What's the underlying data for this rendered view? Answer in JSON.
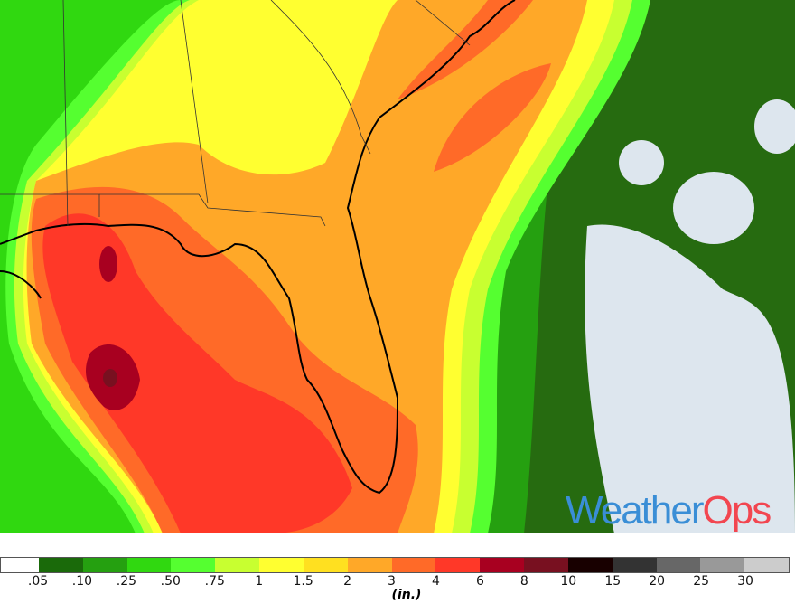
{
  "legend": {
    "unit": "(in.)",
    "labels": [
      ".05",
      ".10",
      ".25",
      ".50",
      ".75",
      "1",
      "1.5",
      "2",
      "3",
      "4",
      "6",
      "8",
      "10",
      "15",
      "20",
      "25",
      "30"
    ],
    "colors": [
      "#ffffff",
      "#1a6a0a",
      "#25a010",
      "#30d810",
      "#55ff30",
      "#c8ff30",
      "#ffff30",
      "#ffe020",
      "#ffa828",
      "#ff6a28",
      "#ff3828",
      "#a80020",
      "#781020",
      "#180000",
      "#333333",
      "#676767",
      "#999999",
      "#cccccc"
    ]
  },
  "logo": {
    "text_part1": "Weather",
    "text_part2": "Ops"
  }
}
